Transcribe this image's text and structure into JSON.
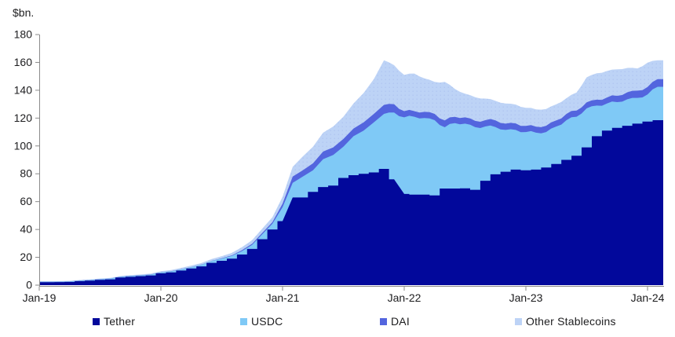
{
  "chart": {
    "ylabel": "$bn.",
    "y_ticks": [
      0,
      20,
      40,
      60,
      80,
      100,
      120,
      140,
      160,
      180
    ],
    "x_ticks": [
      "Jan-19",
      "Jan-20",
      "Jan-21",
      "Jan-22",
      "Jan-23",
      "Jan-24"
    ],
    "axis_color": "#8a8a8a",
    "text_color": "#1d1d1f"
  },
  "chart_data": {
    "type": "area",
    "stacked": true,
    "title": "",
    "xlabel": "",
    "ylabel": "$bn.",
    "ylim": [
      0,
      180
    ],
    "x_range": [
      "Jan-19",
      "Feb-24"
    ],
    "grid": false,
    "legend_position": "bottom",
    "x": [
      "Jan-19",
      "Feb-19",
      "Mar-19",
      "Apr-19",
      "May-19",
      "Jun-19",
      "Jul-19",
      "Aug-19",
      "Sep-19",
      "Oct-19",
      "Nov-19",
      "Dec-19",
      "Jan-20",
      "Feb-20",
      "Mar-20",
      "Apr-20",
      "May-20",
      "Jun-20",
      "Jul-20",
      "Aug-20",
      "Sep-20",
      "Oct-20",
      "Nov-20",
      "Dec-20",
      "Jan-21",
      "Feb-21",
      "Mar-21",
      "Apr-21",
      "May-21",
      "Jun-21",
      "Jul-21",
      "Aug-21",
      "Sep-21",
      "Oct-21",
      "Nov-21",
      "Dec-21",
      "Jan-22",
      "Feb-22",
      "Mar-22",
      "Apr-22",
      "May-22",
      "Jun-22",
      "Jul-22",
      "Aug-22",
      "Sep-22",
      "Oct-22",
      "Nov-22",
      "Dec-22",
      "Jan-23",
      "Feb-23",
      "Mar-23",
      "Apr-23",
      "May-23",
      "Jun-23",
      "Jul-23",
      "Aug-23",
      "Sep-23",
      "Oct-23",
      "Nov-23",
      "Dec-23",
      "Jan-24",
      "Feb-24"
    ],
    "series": [
      {
        "name": "Tether",
        "color": "#02089b",
        "values": [
          2.1,
          2.1,
          2.2,
          2.3,
          2.9,
          3.2,
          3.8,
          4.2,
          5.5,
          6.0,
          6.5,
          7.0,
          8.5,
          9.2,
          10.5,
          12,
          13.5,
          16,
          17.5,
          19,
          22,
          26,
          33,
          40,
          46,
          63,
          63,
          67,
          70.5,
          71.5,
          77,
          79,
          80,
          81,
          83.5,
          76,
          65.5,
          65,
          65,
          64.5,
          69.4,
          69.4,
          69.5,
          68.5,
          75,
          79.6,
          81.5,
          83,
          82.5,
          83,
          84.5,
          87,
          90,
          93,
          99,
          107,
          111,
          113,
          114.5,
          116,
          117.5,
          118.5
        ]
      },
      {
        "name": "USDC",
        "color": "#7fc9f6",
        "values": [
          0.3,
          0.3,
          0.3,
          0.3,
          0.35,
          0.4,
          0.4,
          0.45,
          0.45,
          0.5,
          0.5,
          0.55,
          0.6,
          0.7,
          0.8,
          0.9,
          1.1,
          1.3,
          1.6,
          2,
          2.5,
          3,
          3.6,
          4.2,
          10,
          10.5,
          15,
          15.5,
          20,
          22,
          22.5,
          28,
          31,
          36,
          39.5,
          48,
          55,
          56,
          55,
          54,
          44,
          47,
          46.5,
          45,
          39,
          34,
          30,
          28.5,
          27.5,
          26.5,
          25.5,
          27,
          28.5,
          28,
          28,
          22,
          19.5,
          18.5,
          19,
          18.5,
          19.5,
          24
        ]
      },
      {
        "name": "DAI",
        "color": "#5365de",
        "values": [
          0.1,
          0.1,
          0.1,
          0.1,
          0.1,
          0.1,
          0.1,
          0.1,
          0.1,
          0.1,
          0.1,
          0.1,
          0.1,
          0.1,
          0.1,
          0.1,
          0.12,
          0.15,
          0.2,
          0.4,
          0.6,
          0.8,
          1,
          1.1,
          2.5,
          4.5,
          4.5,
          5,
          5.5,
          5.5,
          5.5,
          5.5,
          6,
          6,
          6.5,
          6,
          4.5,
          4,
          4.5,
          4.5,
          5,
          4.5,
          4.5,
          4.5,
          4.5,
          4.8,
          4.5,
          4.7,
          4.4,
          4.3,
          4.5,
          4.4,
          4.5,
          4.4,
          4.3,
          4.2,
          4.3,
          4.5,
          5,
          5.2,
          5.3,
          5.5
        ]
      },
      {
        "name": "Other Stablecoins",
        "color": "#bdd3f6",
        "values": [
          0.3,
          0.3,
          0.3,
          0.4,
          0.4,
          0.4,
          0.5,
          0.5,
          0.5,
          0.6,
          0.6,
          0.7,
          0.8,
          0.9,
          1,
          1.1,
          1.2,
          1.3,
          1.5,
          1.8,
          2.2,
          2.6,
          3,
          3.5,
          5,
          7,
          10,
          12,
          13.5,
          15,
          16,
          18,
          21,
          25,
          32,
          28,
          26,
          27,
          24,
          23,
          27.6,
          20,
          17,
          17,
          15.5,
          14,
          14.5,
          13.5,
          13,
          12.5,
          12,
          11.5,
          11.3,
          13,
          18,
          19,
          19,
          19,
          17.5,
          16,
          17.5,
          13.5
        ]
      }
    ]
  },
  "legend": {
    "items": [
      {
        "label": "Tether",
        "color": "#02089b"
      },
      {
        "label": "USDC",
        "color": "#7fc9f6"
      },
      {
        "label": "DAI",
        "color": "#5365de"
      },
      {
        "label": "Other Stablecoins",
        "color": "#bdd3f6"
      }
    ]
  }
}
